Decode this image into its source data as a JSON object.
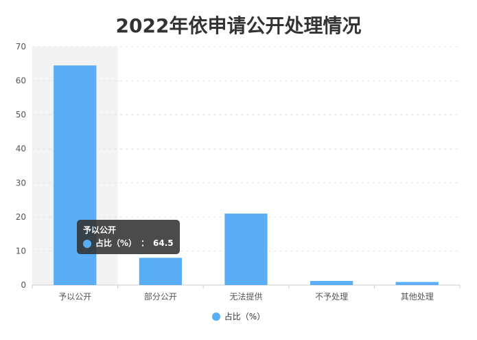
{
  "chart_data": {
    "type": "bar",
    "title": "2022年依申请公开处理情况",
    "categories": [
      "予以公开",
      "部分公开",
      "无法提供",
      "不予处理",
      "其他处理"
    ],
    "series": [
      {
        "name": "占比（%）",
        "values": [
          64.5,
          8,
          21,
          1.2,
          0.9
        ],
        "color": "#5aaef5"
      }
    ],
    "ylim": [
      0,
      70
    ],
    "yticks": [
      0,
      10,
      20,
      30,
      40,
      50,
      60,
      70
    ],
    "grid": true,
    "legend_position": "bottom-center",
    "highlighted_category_index": 0
  },
  "tooltip": {
    "category": "予以公开",
    "series_name": "占比（%）",
    "separator": "：",
    "value": "64.5"
  }
}
